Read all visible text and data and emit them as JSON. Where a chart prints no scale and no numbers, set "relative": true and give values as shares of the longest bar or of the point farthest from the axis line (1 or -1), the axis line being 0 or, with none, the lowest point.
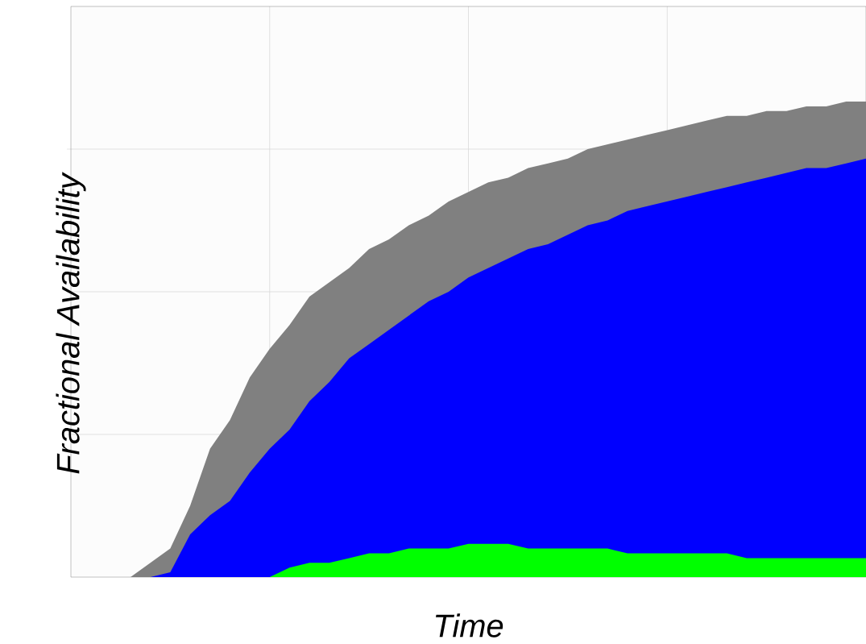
{
  "chart_data": {
    "type": "area",
    "relative": true,
    "grid": true,
    "xlabel": "Time",
    "ylabel": "Fractional Availability",
    "categories": [
      null,
      null,
      null,
      null,
      null,
      null,
      null,
      null,
      null,
      null,
      null,
      null,
      null,
      null,
      null,
      null,
      null,
      null,
      null,
      null,
      null,
      null,
      null,
      null,
      null,
      null,
      null,
      null,
      null,
      null,
      null,
      null,
      null,
      null,
      null,
      null,
      null,
      null,
      null,
      null,
      null
    ],
    "series": [
      {
        "color": "#808080",
        "values": [
          0,
          0,
          0,
          0,
          0.03,
          0.06,
          0.15,
          0.27,
          0.33,
          0.42,
          0.48,
          0.53,
          0.59,
          0.62,
          0.65,
          0.69,
          0.71,
          0.74,
          0.76,
          0.79,
          0.81,
          0.83,
          0.84,
          0.86,
          0.87,
          0.88,
          0.9,
          0.91,
          0.92,
          0.93,
          0.94,
          0.95,
          0.96,
          0.97,
          0.97,
          0.98,
          0.98,
          0.99,
          0.99,
          1.0,
          1
        ]
      },
      {
        "color": "#0000ff",
        "values": [
          0,
          0,
          0,
          0,
          0,
          0.01,
          0.09,
          0.13,
          0.16,
          0.22,
          0.27,
          0.31,
          0.37,
          0.41,
          0.46,
          0.49,
          0.52,
          0.55,
          0.58,
          0.6,
          0.63,
          0.65,
          0.67,
          0.69,
          0.7,
          0.72,
          0.74,
          0.75,
          0.77,
          0.78,
          0.79,
          0.8,
          0.81,
          0.82,
          0.83,
          0.84,
          0.85,
          0.86,
          0.86,
          0.87,
          0.88
        ]
      },
      {
        "color": "#00ff00",
        "values": [
          0,
          0,
          0,
          0,
          0,
          0,
          0,
          0,
          0,
          0,
          0,
          0.02,
          0.03,
          0.03,
          0.04,
          0.05,
          0.05,
          0.06,
          0.06,
          0.06,
          0.07,
          0.07,
          0.07,
          0.06,
          0.06,
          0.06,
          0.06,
          0.06,
          0.05,
          0.05,
          0.05,
          0.05,
          0.05,
          0.05,
          0.04,
          0.04,
          0.04,
          0.04,
          0.04,
          0.04,
          0.04
        ]
      }
    ]
  }
}
